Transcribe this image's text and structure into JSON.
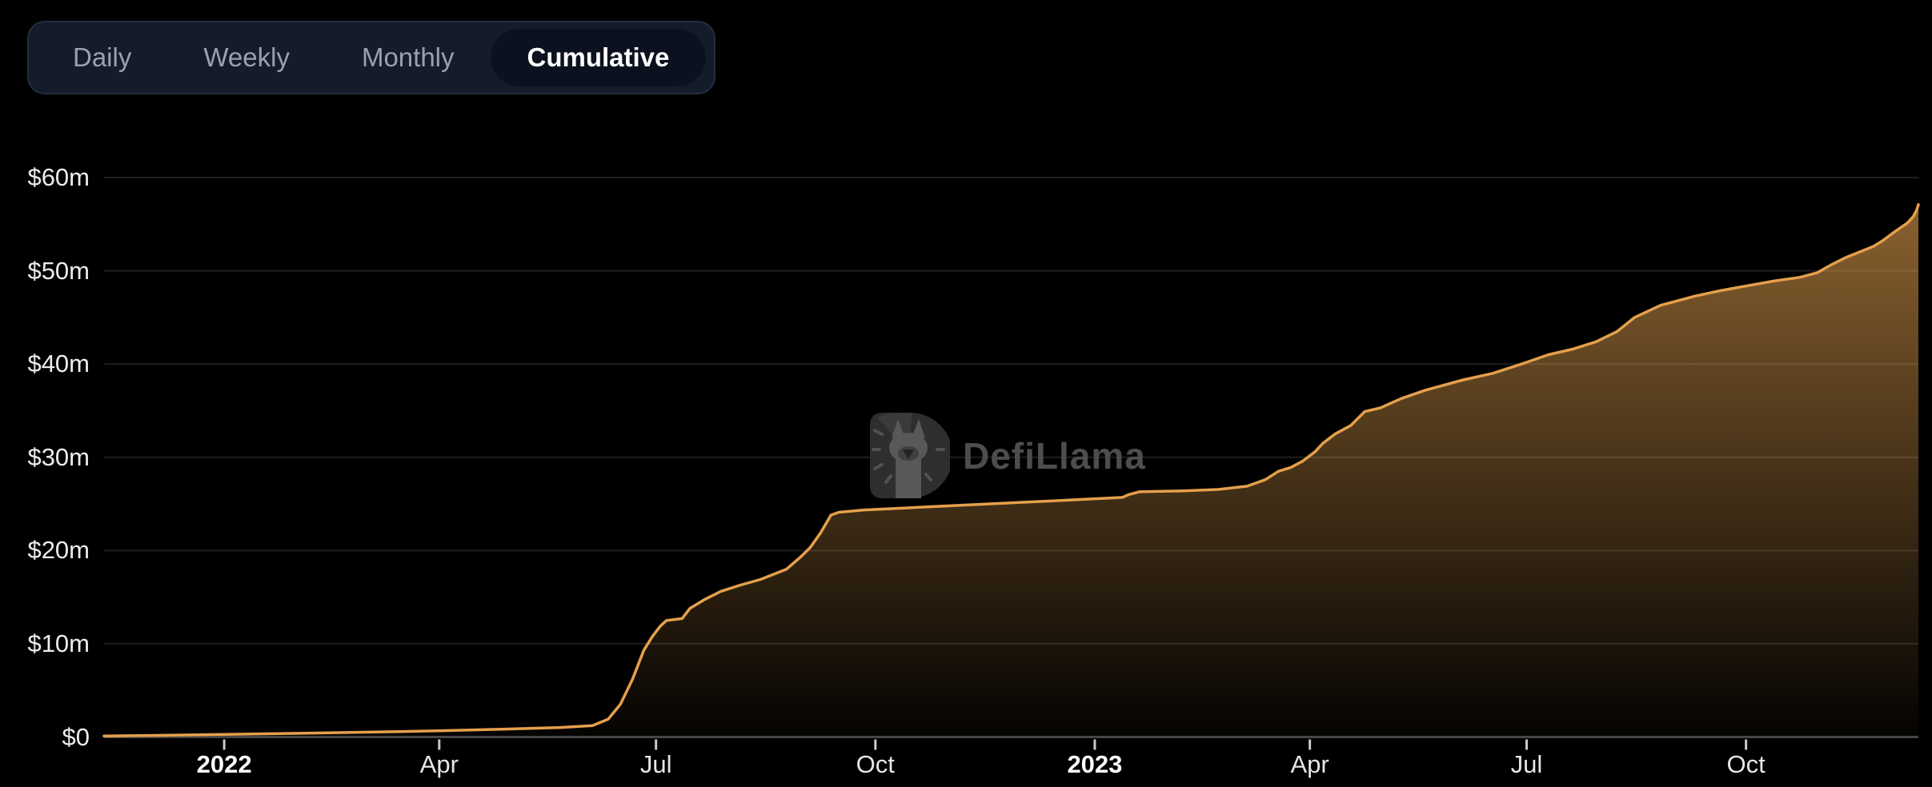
{
  "page": {
    "background": "#000000"
  },
  "tabs": {
    "items": [
      {
        "label": "Daily"
      },
      {
        "label": "Weekly"
      },
      {
        "label": "Monthly"
      },
      {
        "label": "Cumulative"
      }
    ],
    "active": "Cumulative"
  },
  "watermark": {
    "text": "DefiLlama"
  },
  "chart_data": {
    "type": "area",
    "legend_position": "none",
    "grid": true,
    "unit": "USD millions",
    "xlim": [
      2021.862,
      2023.946
    ],
    "ylim": [
      0,
      60
    ],
    "y_ticks": [
      {
        "v": 0,
        "label": "$0"
      },
      {
        "v": 10,
        "label": "$10m"
      },
      {
        "v": 20,
        "label": "$20m"
      },
      {
        "v": 30,
        "label": "$30m"
      },
      {
        "v": 40,
        "label": "$40m"
      },
      {
        "v": 50,
        "label": "$50m"
      },
      {
        "v": 60,
        "label": "$60m"
      }
    ],
    "x_ticks": [
      {
        "t": 2022.0,
        "label": "2022",
        "bold": true
      },
      {
        "t": 2022.247,
        "label": "Apr",
        "bold": false
      },
      {
        "t": 2022.496,
        "label": "Jul",
        "bold": false
      },
      {
        "t": 2022.748,
        "label": "Oct",
        "bold": false
      },
      {
        "t": 2023.0,
        "label": "2023",
        "bold": true
      },
      {
        "t": 2023.247,
        "label": "Apr",
        "bold": false
      },
      {
        "t": 2023.496,
        "label": "Jul",
        "bold": false
      },
      {
        "t": 2023.748,
        "label": "Oct",
        "bold": false
      }
    ],
    "series": [
      {
        "name": "Cumulative",
        "points": [
          [
            2021.862,
            0.1
          ],
          [
            2021.93,
            0.18
          ],
          [
            2022.0,
            0.28
          ],
          [
            2022.07,
            0.38
          ],
          [
            2022.14,
            0.48
          ],
          [
            2022.2,
            0.58
          ],
          [
            2022.25,
            0.68
          ],
          [
            2022.3,
            0.8
          ],
          [
            2022.35,
            0.92
          ],
          [
            2022.386,
            1.02
          ],
          [
            2022.423,
            1.22
          ],
          [
            2022.441,
            1.9
          ],
          [
            2022.455,
            3.5
          ],
          [
            2022.469,
            6.2
          ],
          [
            2022.482,
            9.3
          ],
          [
            2022.492,
            10.8
          ],
          [
            2022.501,
            11.9
          ],
          [
            2022.508,
            12.5
          ],
          [
            2022.526,
            12.7
          ],
          [
            2022.535,
            13.8
          ],
          [
            2022.551,
            14.7
          ],
          [
            2022.57,
            15.6
          ],
          [
            2022.593,
            16.3
          ],
          [
            2022.616,
            16.9
          ],
          [
            2022.646,
            18.0
          ],
          [
            2022.662,
            19.3
          ],
          [
            2022.673,
            20.3
          ],
          [
            2022.685,
            21.9
          ],
          [
            2022.697,
            23.8
          ],
          [
            2022.706,
            24.1
          ],
          [
            2022.735,
            24.35
          ],
          [
            2022.79,
            24.6
          ],
          [
            2022.846,
            24.85
          ],
          [
            2022.901,
            25.1
          ],
          [
            2022.947,
            25.3
          ],
          [
            2023.0,
            25.55
          ],
          [
            2023.032,
            25.7
          ],
          [
            2023.039,
            26.0
          ],
          [
            2023.051,
            26.3
          ],
          [
            2023.101,
            26.4
          ],
          [
            2023.141,
            26.55
          ],
          [
            2023.175,
            26.9
          ],
          [
            2023.196,
            27.6
          ],
          [
            2023.211,
            28.5
          ],
          [
            2023.225,
            28.9
          ],
          [
            2023.239,
            29.6
          ],
          [
            2023.253,
            30.6
          ],
          [
            2023.262,
            31.5
          ],
          [
            2023.276,
            32.5
          ],
          [
            2023.294,
            33.4
          ],
          [
            2023.31,
            34.9
          ],
          [
            2023.328,
            35.3
          ],
          [
            2023.352,
            36.3
          ],
          [
            2023.38,
            37.2
          ],
          [
            2023.423,
            38.3
          ],
          [
            2023.457,
            39.0
          ],
          [
            2023.49,
            40.0
          ],
          [
            2023.521,
            41.0
          ],
          [
            2023.549,
            41.6
          ],
          [
            2023.576,
            42.4
          ],
          [
            2023.6,
            43.5
          ],
          [
            2023.62,
            45.0
          ],
          [
            2023.65,
            46.3
          ],
          [
            2023.69,
            47.3
          ],
          [
            2023.72,
            47.9
          ],
          [
            2023.75,
            48.4
          ],
          [
            2023.78,
            48.9
          ],
          [
            2023.81,
            49.3
          ],
          [
            2023.83,
            49.8
          ],
          [
            2023.845,
            50.6
          ],
          [
            2023.862,
            51.4
          ],
          [
            2023.878,
            52.0
          ],
          [
            2023.894,
            52.6
          ],
          [
            2023.906,
            53.3
          ],
          [
            2023.916,
            54.0
          ],
          [
            2023.925,
            54.6
          ],
          [
            2023.933,
            55.1
          ],
          [
            2023.94,
            55.8
          ],
          [
            2023.944,
            56.5
          ],
          [
            2023.946,
            57.1
          ]
        ]
      }
    ],
    "colors": {
      "line": "#e5a04c",
      "fill_top": "rgba(232,164,80,0.62)",
      "fill_bottom": "rgba(232,164,80,0.02)",
      "grid": "#1e1e1e",
      "axis": "#454545",
      "tick": "#c9c9c9",
      "label": "#ececec"
    }
  }
}
